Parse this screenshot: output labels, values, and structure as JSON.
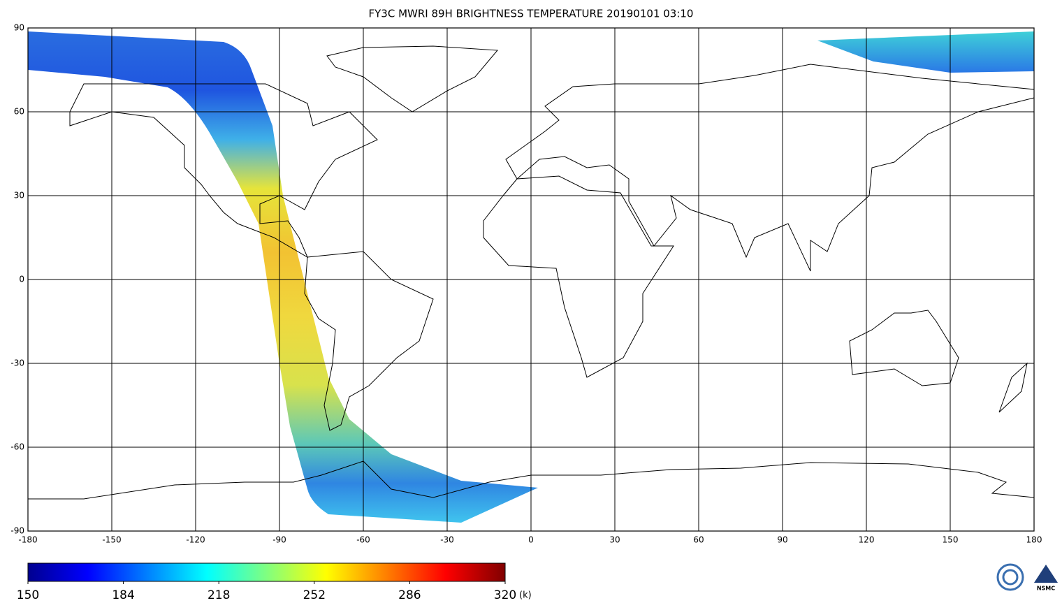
{
  "map": {
    "title": "FY3C MWRI 89H BRIGHTNESS TEMPERATURE  20190101 03:10",
    "lonlim": [
      -180,
      180
    ],
    "latlim": [
      -90,
      90
    ],
    "lon_ticks": [
      -180,
      -150,
      -120,
      -90,
      -60,
      -30,
      0,
      30,
      60,
      90,
      120,
      150,
      180
    ],
    "lat_ticks": [
      -90,
      -60,
      -30,
      0,
      30,
      60,
      90
    ]
  },
  "colorbar": {
    "lim": [
      150,
      320
    ],
    "ticks": [
      150,
      184,
      218,
      252,
      286,
      320
    ],
    "unit": "(k)",
    "colors": [
      "#00008f",
      "#0000ff",
      "#0080ff",
      "#00ffff",
      "#80ff80",
      "#ffff00",
      "#ff8000",
      "#ff0000",
      "#800000"
    ]
  },
  "logo": "NSMC"
}
